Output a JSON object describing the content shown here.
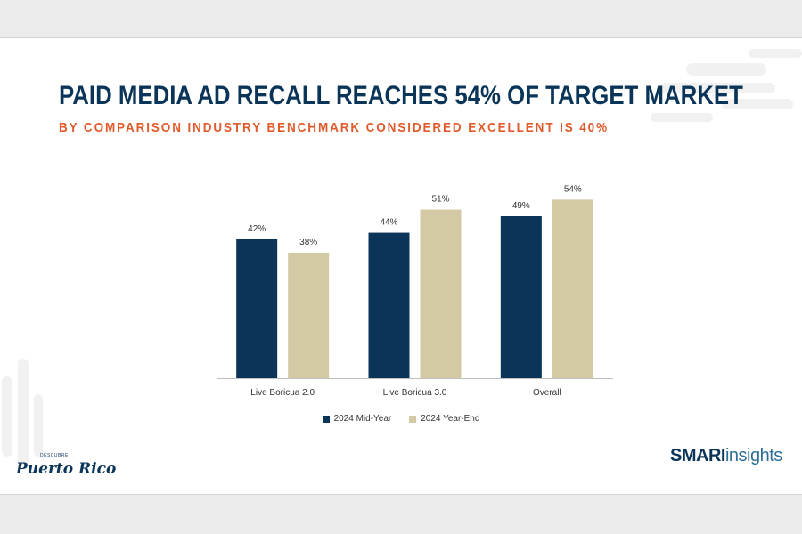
{
  "title": "PAID MEDIA AD RECALL REACHES 54% OF TARGET MARKET",
  "subtitle": "BY COMPARISON INDUSTRY BENCHMARK CONSIDERED EXCELLENT IS 40%",
  "colors": {
    "navy": "#0b3558",
    "tan": "#d3c9a4",
    "orange": "#e05b2c",
    "background": "#ffffff"
  },
  "chart_data": {
    "type": "bar",
    "categories": [
      "Live Boricua 2.0",
      "Live Boricua 3.0",
      "Overall"
    ],
    "series": [
      {
        "name": "2024 Mid-Year",
        "values": [
          42,
          44,
          49
        ],
        "labels": [
          "42%",
          "44%",
          "49%"
        ],
        "color": "#0b3558"
      },
      {
        "name": "2024 Year-End",
        "values": [
          38,
          51,
          54
        ],
        "labels": [
          "38%",
          "51%",
          "54%"
        ],
        "color": "#d3c9a4"
      }
    ],
    "ylim": [
      0,
      70
    ],
    "grid": false,
    "legend": "bottom-center"
  },
  "logos": {
    "left_main": "Puerto Rico",
    "left_small": "DESCUBRE",
    "right_bold": "SMARI",
    "right_light": "insights"
  }
}
